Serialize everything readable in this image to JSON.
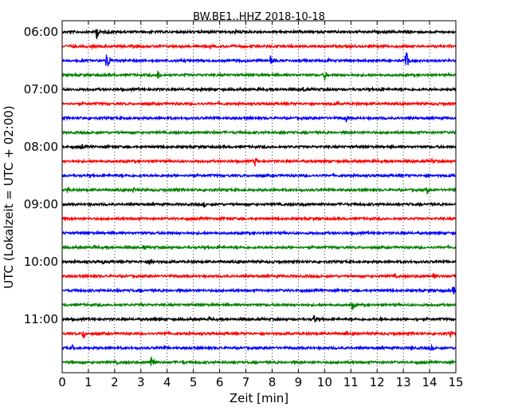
{
  "chart_data": {
    "type": "line",
    "title": "BW.BE1..HHZ 2018-10-18",
    "xlabel": "Zeit  [min]",
    "ylabel": "UTC (Lokalzeit = UTC + 02:00)",
    "xlim": [
      0,
      15
    ],
    "x_ticks": [
      "0",
      "1",
      "2",
      "3",
      "4",
      "5",
      "6",
      "7",
      "8",
      "9",
      "10",
      "11",
      "12",
      "13",
      "14",
      "15"
    ],
    "grid": "vertical dotted",
    "trace_interval_min": 15,
    "start_time": "06:00",
    "y_tick_labels": [
      {
        "trace_index": 0,
        "label": "06:00"
      },
      {
        "trace_index": 4,
        "label": "07:00"
      },
      {
        "trace_index": 8,
        "label": "08:00"
      },
      {
        "trace_index": 12,
        "label": "09:00"
      },
      {
        "trace_index": 16,
        "label": "10:00"
      },
      {
        "trace_index": 20,
        "label": "11:00"
      }
    ],
    "series_colors": [
      "#000000",
      "#ff0000",
      "#0000ff",
      "#008000"
    ],
    "series": [
      {
        "start": "06:00",
        "color": "#000000",
        "events": [
          [
            1.3,
            10
          ],
          [
            1.75,
            4
          ],
          [
            6.6,
            4
          ],
          [
            13.2,
            3
          ]
        ]
      },
      {
        "start": "06:15",
        "color": "#ff0000",
        "events": [
          [
            0.45,
            3
          ],
          [
            1.15,
            3
          ],
          [
            5.65,
            3
          ]
        ]
      },
      {
        "start": "06:30",
        "color": "#0000ff",
        "events": [
          [
            1.7,
            14
          ],
          [
            7.95,
            10
          ],
          [
            13.1,
            14
          ],
          [
            10.15,
            3
          ],
          [
            11.4,
            3
          ],
          [
            4.65,
            3
          ]
        ]
      },
      {
        "start": "06:45",
        "color": "#008000",
        "events": [
          [
            3.65,
            7
          ],
          [
            10.0,
            7
          ],
          [
            4.65,
            3
          ],
          [
            1.95,
            2
          ]
        ]
      },
      {
        "start": "07:00",
        "color": "#000000",
        "events": [
          [
            3.6,
            3
          ],
          [
            5.3,
            3
          ],
          [
            9.2,
            4
          ],
          [
            12.1,
            4
          ]
        ]
      },
      {
        "start": "07:15",
        "color": "#ff0000",
        "events": [
          [
            3.2,
            2
          ],
          [
            10.5,
            3
          ]
        ]
      },
      {
        "start": "07:30",
        "color": "#0000ff",
        "events": [
          [
            2.4,
            4
          ],
          [
            10.8,
            7
          ],
          [
            7.8,
            2
          ]
        ]
      },
      {
        "start": "07:45",
        "color": "#008000",
        "events": [
          [
            8.3,
            4
          ],
          [
            5.8,
            3
          ],
          [
            11.8,
            3
          ]
        ]
      },
      {
        "start": "08:00",
        "color": "#000000",
        "events": [
          [
            0.75,
            4
          ],
          [
            12.5,
            3
          ],
          [
            8.1,
            2
          ]
        ]
      },
      {
        "start": "08:15",
        "color": "#ff0000",
        "events": [
          [
            7.35,
            7
          ],
          [
            14.1,
            5
          ],
          [
            4.9,
            2
          ]
        ]
      },
      {
        "start": "08:30",
        "color": "#0000ff",
        "events": [
          [
            4.85,
            4
          ],
          [
            13.95,
            3
          ],
          [
            6.3,
            2
          ]
        ]
      },
      {
        "start": "08:45",
        "color": "#008000",
        "events": [
          [
            13.9,
            6
          ],
          [
            0.2,
            4
          ],
          [
            2.7,
            4
          ],
          [
            4.3,
            4
          ],
          [
            14.95,
            4
          ]
        ]
      },
      {
        "start": "09:00",
        "color": "#000000",
        "events": [
          [
            5.4,
            4
          ],
          [
            9.2,
            3
          ]
        ]
      },
      {
        "start": "09:15",
        "color": "#ff0000",
        "events": [
          [
            6.1,
            3
          ],
          [
            2.2,
            2
          ]
        ]
      },
      {
        "start": "09:30",
        "color": "#0000ff",
        "events": [
          [
            5.4,
            2
          ]
        ]
      },
      {
        "start": "09:45",
        "color": "#008000",
        "events": [
          [
            3.1,
            4
          ],
          [
            1.2,
            3
          ],
          [
            6.0,
            3
          ]
        ]
      },
      {
        "start": "10:00",
        "color": "#000000",
        "events": [
          [
            3.35,
            7
          ],
          [
            1.55,
            3
          ],
          [
            0.85,
            2
          ]
        ]
      },
      {
        "start": "10:15",
        "color": "#ff0000",
        "events": [
          [
            14.15,
            7
          ],
          [
            12.7,
            3
          ]
        ]
      },
      {
        "start": "10:30",
        "color": "#0000ff",
        "events": [
          [
            14.9,
            7
          ],
          [
            2.1,
            3
          ],
          [
            14.5,
            3
          ]
        ]
      },
      {
        "start": "10:45",
        "color": "#008000",
        "events": [
          [
            11.05,
            7
          ],
          [
            3.0,
            3
          ],
          [
            12.8,
            2
          ]
        ]
      },
      {
        "start": "11:00",
        "color": "#000000",
        "events": [
          [
            9.6,
            7
          ],
          [
            3.5,
            4
          ],
          [
            5.6,
            4
          ],
          [
            12.15,
            3
          ],
          [
            13.5,
            3
          ]
        ]
      },
      {
        "start": "11:15",
        "color": "#ff0000",
        "events": [
          [
            0.8,
            8
          ],
          [
            3.9,
            4
          ],
          [
            14.8,
            4
          ],
          [
            10.8,
            3
          ]
        ]
      },
      {
        "start": "11:30",
        "color": "#0000ff",
        "events": [
          [
            0.4,
            4
          ],
          [
            13.3,
            4
          ],
          [
            14.05,
            4
          ],
          [
            3.9,
            3
          ],
          [
            7.8,
            2
          ]
        ]
      },
      {
        "start": "11:45",
        "color": "#008000",
        "events": [
          [
            3.4,
            14
          ],
          [
            0.35,
            4
          ],
          [
            2.1,
            3
          ],
          [
            4.6,
            3
          ]
        ]
      }
    ]
  }
}
